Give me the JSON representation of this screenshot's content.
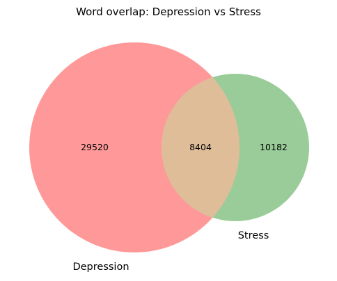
{
  "title": "Word overlap: Depression vs Stress",
  "chart_data": {
    "type": "venn",
    "sets": [
      {
        "name": "Depression",
        "only_count": "29520",
        "color": "#ff9999"
      },
      {
        "name": "Stress",
        "only_count": "10182",
        "color": "#99cc99"
      }
    ],
    "intersection": {
      "count": "8404",
      "color": "#e0bd99"
    }
  }
}
